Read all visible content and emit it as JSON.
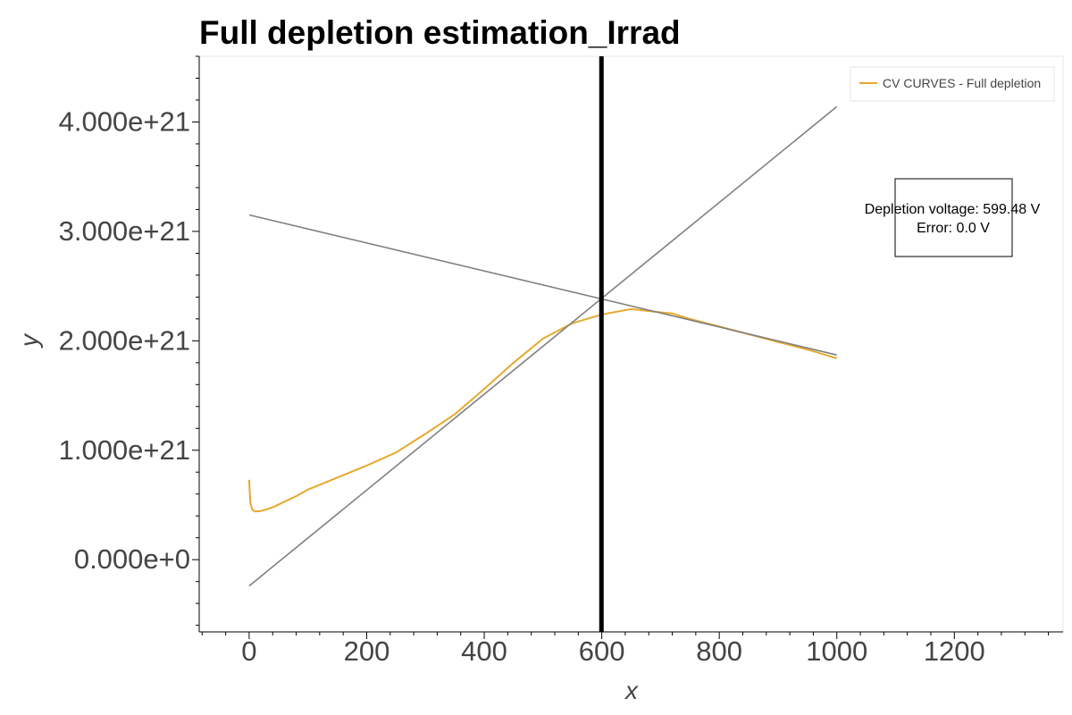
{
  "chart_data": {
    "type": "line",
    "title": "Full depletion estimation_Irrad",
    "xlabel": "x",
    "ylabel": "y",
    "xlim": [
      -85,
      1385
    ],
    "ylim": [
      -6.6e+20,
      4.6e+21
    ],
    "x_ticks": [
      {
        "value": 0,
        "label": "0"
      },
      {
        "value": 200,
        "label": "200"
      },
      {
        "value": 400,
        "label": "400"
      },
      {
        "value": 600,
        "label": "600"
      },
      {
        "value": 800,
        "label": "800"
      },
      {
        "value": 1000,
        "label": "1000"
      },
      {
        "value": 1200,
        "label": "1200"
      }
    ],
    "y_ticks": [
      {
        "value": 0,
        "label": "0.000e+0"
      },
      {
        "value": 1e+21,
        "label": "1.000e+21"
      },
      {
        "value": 2e+21,
        "label": "2.000e+21"
      },
      {
        "value": 3e+21,
        "label": "3.000e+21"
      },
      {
        "value": 4e+21,
        "label": "4.000e+21"
      }
    ],
    "grid": false,
    "legend": {
      "position": "top-right",
      "entries": [
        "CV CURVES - Full depletion"
      ]
    },
    "series": [
      {
        "name": "CV CURVES - Full depletion",
        "color": "#e6a92e",
        "x": [
          0,
          2,
          5,
          10,
          20,
          30,
          45,
          60,
          80,
          100,
          150,
          200,
          250,
          300,
          350,
          400,
          450,
          500,
          550,
          600,
          650,
          700,
          720,
          750,
          800,
          850,
          900,
          950,
          1000
        ],
        "y": [
          7.3e+20,
          5.2e+20,
          4.6e+20,
          4.4e+20,
          4.45e+20,
          4.6e+20,
          4.9e+20,
          5.3e+20,
          5.8e+20,
          6.4e+20,
          7.5e+20,
          8.6e+20,
          9.8e+20,
          1.15e+21,
          1.33e+21,
          1.56e+21,
          1.8e+21,
          2.02e+21,
          2.16e+21,
          2.24e+21,
          2.29e+21,
          2.26e+21,
          2.25e+21,
          2.2e+21,
          2.13e+21,
          2.06e+21,
          1.99e+21,
          1.92e+21,
          1.84e+21
        ]
      },
      {
        "name": "",
        "color": "#808080",
        "x": [
          0,
          1000
        ],
        "y": [
          -2.4e+20,
          4.14e+21
        ]
      },
      {
        "name": "",
        "color": "#808080",
        "x": [
          0,
          1000
        ],
        "y": [
          3.15e+21,
          1.87e+21
        ]
      }
    ],
    "vline": {
      "x": 599.48,
      "color": "#000000"
    },
    "annotations": [
      "Depletion voltage: 599.48 V",
      "Error: 0.0 V"
    ]
  }
}
